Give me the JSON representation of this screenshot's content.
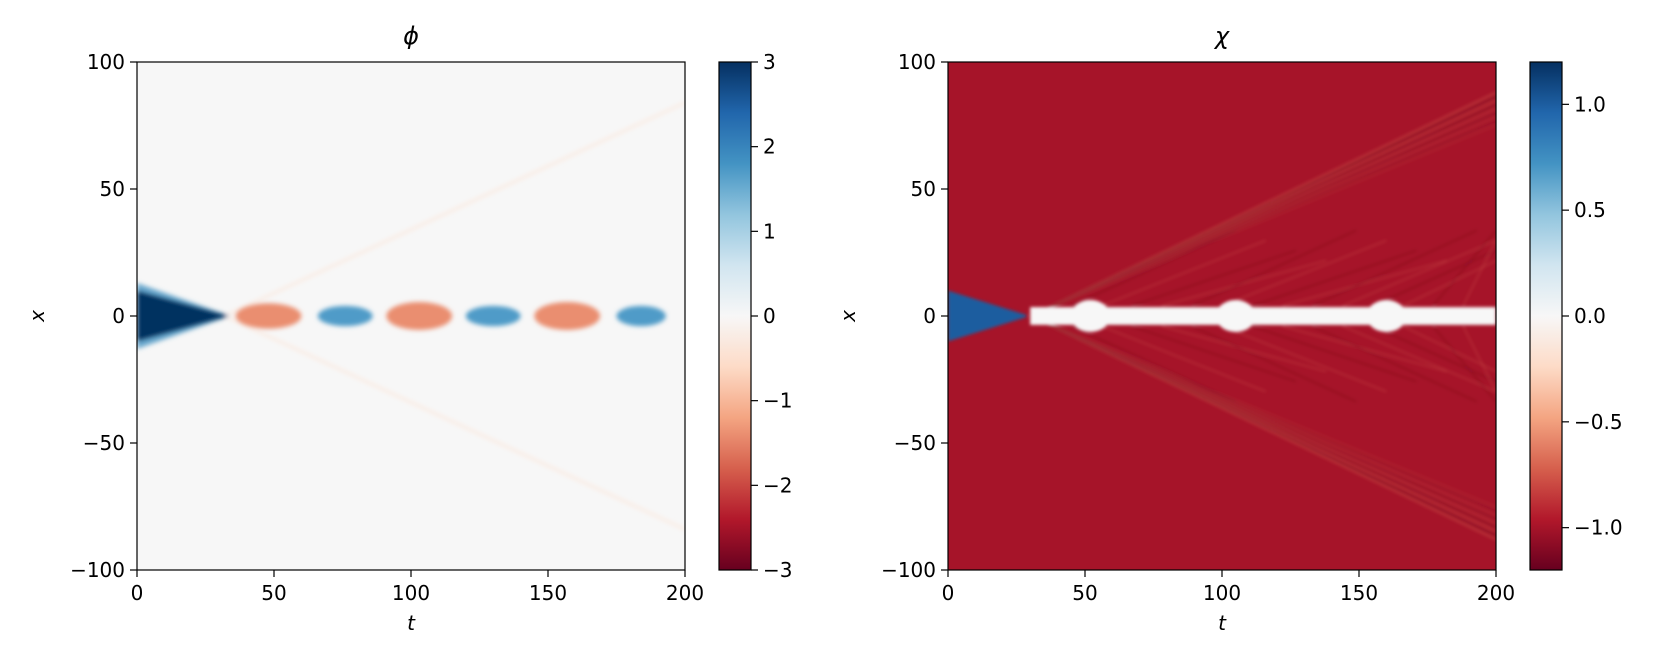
{
  "figure": {
    "panels": [
      {
        "title": "ϕ",
        "xlabel": "t",
        "ylabel": "x",
        "colormap": "RdBu"
      },
      {
        "title": "χ",
        "xlabel": "t",
        "ylabel": "x",
        "colormap": "RdBu"
      }
    ]
  },
  "colors": {
    "deep_red": "#67001f",
    "red": "#b2182b",
    "salmon": "#d6604d",
    "peach": "#f4a582",
    "pale_peach": "#fddbc7",
    "neutral": "#f7f7f7",
    "pale_blue": "#d1e5f0",
    "light_blue": "#92c5de",
    "mid_blue": "#4393c3",
    "blue": "#2166ac",
    "deep_blue": "#053061"
  },
  "chart_data": [
    {
      "type": "heatmap",
      "title": "ϕ",
      "xlabel": "t",
      "ylabel": "x",
      "xlim": [
        0,
        200
      ],
      "ylim": [
        -100,
        100
      ],
      "xticks": [
        0,
        50,
        100,
        150,
        200
      ],
      "yticks": [
        -100,
        -50,
        0,
        50,
        100
      ],
      "xtick_labels": [
        "0",
        "50",
        "100",
        "150",
        "200"
      ],
      "ytick_labels": [
        "−100",
        "−50",
        "0",
        "50",
        "100"
      ],
      "colorbar": {
        "range": [
          -3,
          3
        ],
        "ticks": [
          -3,
          -2,
          -1,
          0,
          1,
          2,
          3
        ],
        "tick_labels": [
          "−3",
          "−2",
          "−1",
          "0",
          "1",
          "2",
          "3"
        ]
      },
      "background_value": 0,
      "features": [
        {
          "kind": "initial-pulse",
          "t_range": [
            0,
            32
          ],
          "x_halfwidth": 10,
          "value": 3
        },
        {
          "kind": "oscillon-lobe",
          "t_center": 48,
          "t_halfwidth": 12,
          "x_halfwidth": 5,
          "value": -1.4
        },
        {
          "kind": "oscillon-lobe",
          "t_center": 76,
          "t_halfwidth": 10,
          "x_halfwidth": 4,
          "value": 1.7
        },
        {
          "kind": "oscillon-lobe",
          "t_center": 103,
          "t_halfwidth": 12,
          "x_halfwidth": 5.5,
          "value": -1.4
        },
        {
          "kind": "oscillon-lobe",
          "t_center": 130,
          "t_halfwidth": 10,
          "x_halfwidth": 4,
          "value": 1.7
        },
        {
          "kind": "oscillon-lobe",
          "t_center": 157,
          "t_halfwidth": 12,
          "x_halfwidth": 5.5,
          "value": -1.4
        },
        {
          "kind": "oscillon-lobe",
          "t_center": 184,
          "t_halfwidth": 9,
          "x_halfwidth": 4,
          "value": 1.7
        }
      ],
      "radiation_front": {
        "t_start": 32,
        "x_start": 0,
        "t_end": 200,
        "x_end": 84
      }
    },
    {
      "type": "heatmap",
      "title": "χ",
      "xlabel": "t",
      "ylabel": "x",
      "xlim": [
        0,
        200
      ],
      "ylim": [
        -100,
        100
      ],
      "xticks": [
        0,
        50,
        100,
        150,
        200
      ],
      "yticks": [
        -100,
        -50,
        0,
        50,
        100
      ],
      "xtick_labels": [
        "0",
        "50",
        "100",
        "150",
        "200"
      ],
      "ytick_labels": [
        "−100",
        "−50",
        "0",
        "50",
        "100"
      ],
      "colorbar": {
        "range": [
          -1.2,
          1.2
        ],
        "ticks": [
          -1.0,
          -0.5,
          0.0,
          0.5,
          1.0
        ],
        "tick_labels": [
          "−1.0",
          "−0.5",
          "0.0",
          "0.5",
          "1.0"
        ]
      },
      "background_value": -1.0,
      "features": [
        {
          "kind": "initial-pulse",
          "t_range": [
            0,
            28
          ],
          "x_halfwidth": 10,
          "value": 1.0
        },
        {
          "kind": "central-band",
          "t_range": [
            30,
            200
          ],
          "x_halfwidth": 3.5,
          "value": 0.0
        },
        {
          "kind": "band-bulge",
          "t_center": 52,
          "value": 0.0
        },
        {
          "kind": "band-bulge",
          "t_center": 105,
          "value": 0.0
        },
        {
          "kind": "band-bulge",
          "t_center": 160,
          "value": 0.0
        }
      ],
      "radiation_front": {
        "t_start": 30,
        "x_start": 0,
        "t_end": 200,
        "x_end": 88
      }
    }
  ]
}
